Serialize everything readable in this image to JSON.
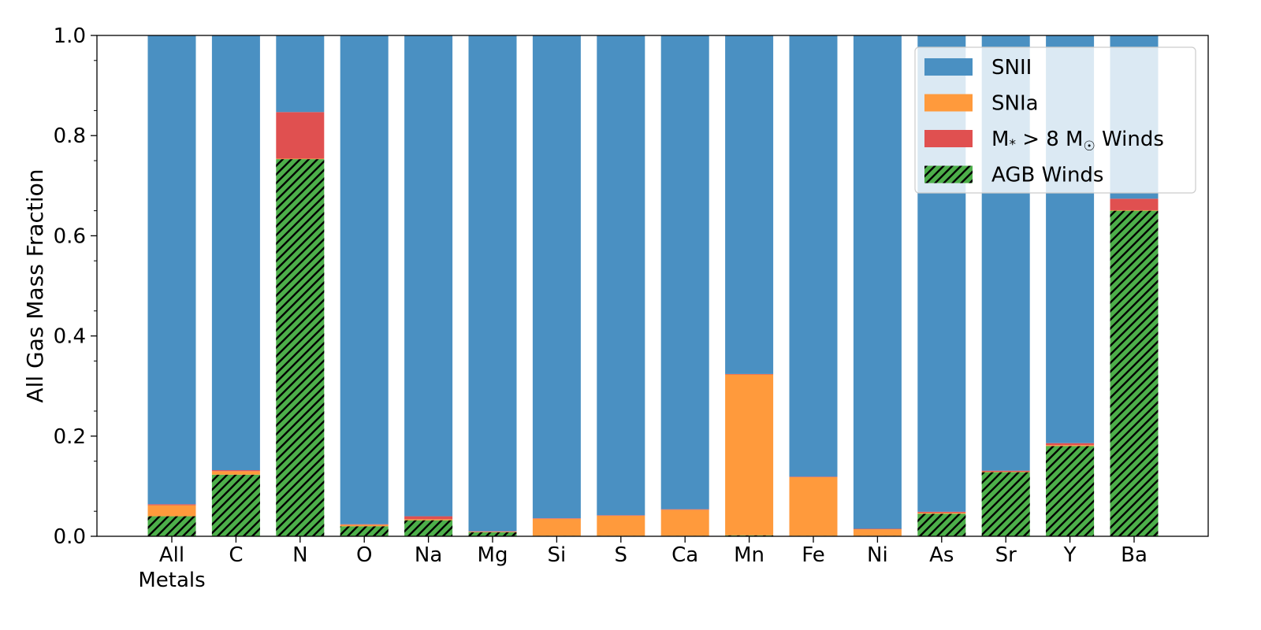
{
  "chart_data": {
    "type": "bar",
    "stacked": true,
    "title": "",
    "xlabel": "",
    "ylabel": "All Gas Mass Fraction",
    "ylim": [
      0,
      1.0
    ],
    "yticks": [
      "0.0",
      "0.2",
      "0.4",
      "0.6",
      "0.8",
      "1.0"
    ],
    "categories": [
      "All\nMetals",
      "C",
      "N",
      "O",
      "Na",
      "Mg",
      "Si",
      "S",
      "Ca",
      "Mn",
      "Fe",
      "Ni",
      "As",
      "Sr",
      "Y",
      "Ba"
    ],
    "series": [
      {
        "name": "AGB Winds",
        "color": "#4daf4a",
        "hatch": true,
        "values": [
          0.04,
          0.123,
          0.753,
          0.02,
          0.032,
          0.008,
          0.001,
          0.001,
          0.001,
          0.002,
          0.001,
          0.001,
          0.045,
          0.128,
          0.18,
          0.65
        ]
      },
      {
        "name": "SNIa",
        "color": "#ff9a3c",
        "values": [
          0.022,
          0.007,
          0.001,
          0.003,
          0.002,
          0.001,
          0.034,
          0.04,
          0.052,
          0.321,
          0.117,
          0.013,
          0.002,
          0.001,
          0.002,
          0.001
        ]
      },
      {
        "name": "M* > 8 M☉ Winds",
        "color": "#e05050",
        "values": [
          0.002,
          0.002,
          0.093,
          0.001,
          0.006,
          0.001,
          0.001,
          0.001,
          0.001,
          0.001,
          0.001,
          0.001,
          0.002,
          0.002,
          0.004,
          0.023
        ]
      },
      {
        "name": "SNII",
        "color": "#4a90c2",
        "values": [
          0.936,
          0.868,
          0.153,
          0.976,
          0.96,
          0.99,
          0.964,
          0.958,
          0.946,
          0.676,
          0.881,
          0.985,
          0.951,
          0.869,
          0.814,
          0.326
        ]
      }
    ],
    "legend": {
      "placement": "top-right",
      "entries": [
        {
          "label": "SNII",
          "series": "SNII"
        },
        {
          "label": "SNIa",
          "series": "SNIa"
        },
        {
          "label_main": "M",
          "label_sub": "*",
          "label_mid": " > 8 M",
          "label_sun": "☉",
          "label_end": " Winds",
          "series": "M* > 8 M☉ Winds"
        },
        {
          "label": "AGB Winds",
          "series": "AGB Winds"
        }
      ]
    }
  }
}
